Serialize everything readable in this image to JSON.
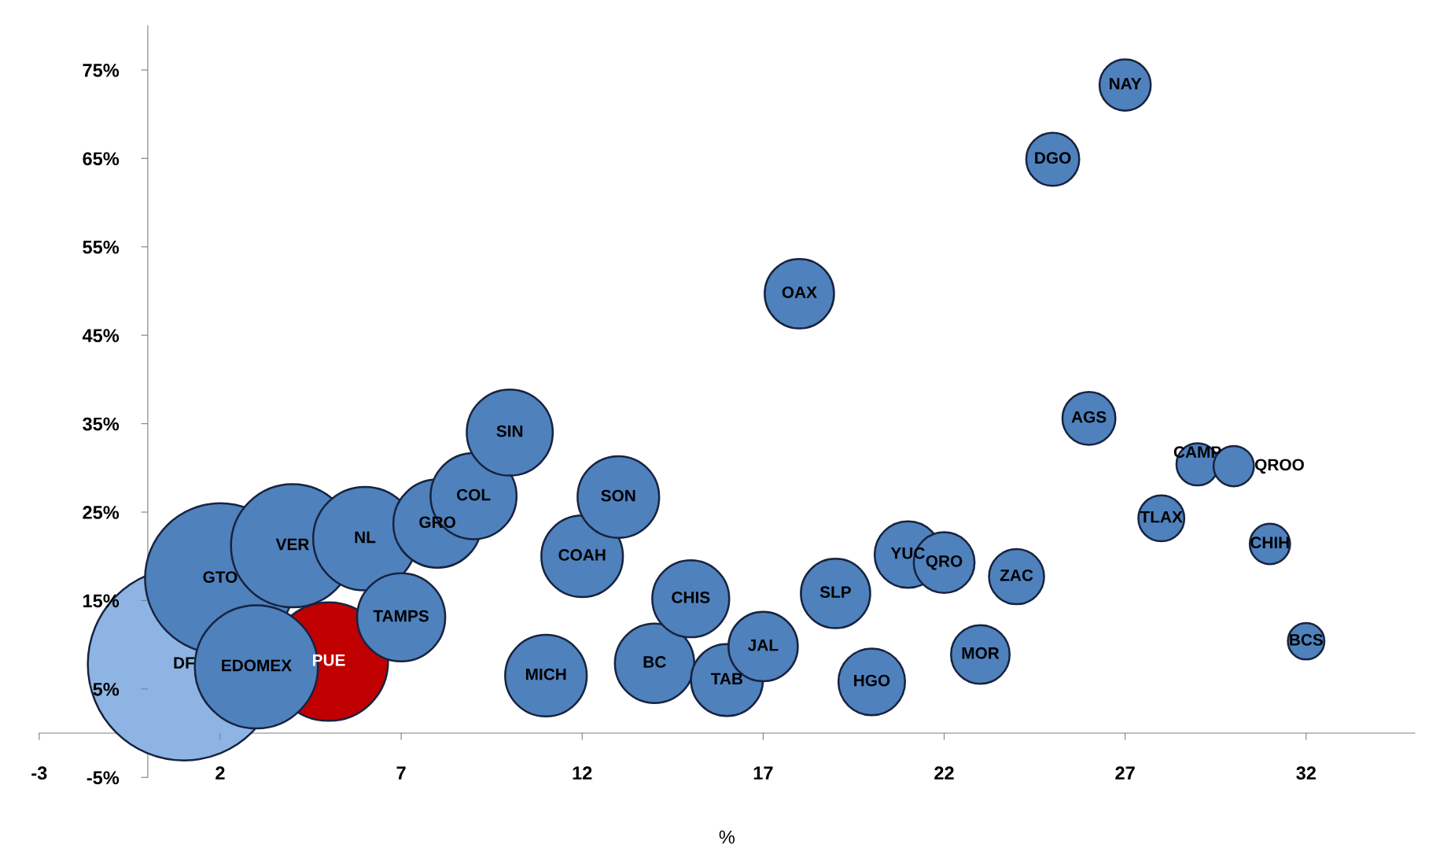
{
  "chart_data": {
    "type": "bubble",
    "xlabel": "%",
    "x": [
      1,
      2,
      4,
      6,
      5,
      3,
      7,
      8,
      9,
      10,
      11,
      12,
      13,
      14,
      15,
      16,
      17,
      18,
      19,
      20,
      21,
      22,
      23,
      24,
      25,
      26,
      27,
      28,
      29,
      30,
      31,
      32
    ],
    "values": [
      7.8,
      17.5,
      21.2,
      22.0,
      8.1,
      7.5,
      13.1,
      23.7,
      26.8,
      34.0,
      6.5,
      20.0,
      26.7,
      7.9,
      15.2,
      6.0,
      9.8,
      49.7,
      15.8,
      5.8,
      20.2,
      19.3,
      8.9,
      17.7,
      64.9,
      35.6,
      73.3,
      24.3,
      30.4,
      30.2,
      21.4,
      10.4
    ],
    "sizes": [
      1,
      0.61,
      0.41,
      0.29,
      0.38,
      0.41,
      0.21,
      0.21,
      0.2,
      0.2,
      0.18,
      0.18,
      0.18,
      0.17,
      0.16,
      0.14,
      0.13,
      0.13,
      0.13,
      0.12,
      0.12,
      0.1,
      0.093,
      0.082,
      0.076,
      0.076,
      0.071,
      0.057,
      0.048,
      0.044,
      0.044,
      0.036
    ],
    "colors": [
      "#8eb4e3",
      "#4f81bd",
      "#4f81bd",
      "#4f81bd",
      "#c00000",
      "#4f81bd",
      "#4f81bd",
      "#4f81bd",
      "#4f81bd",
      "#4f81bd",
      "#4f81bd",
      "#4f81bd",
      "#4f81bd",
      "#4f81bd",
      "#4f81bd",
      "#4f81bd",
      "#4f81bd",
      "#4f81bd",
      "#4f81bd",
      "#4f81bd",
      "#4f81bd",
      "#4f81bd",
      "#4f81bd",
      "#4f81bd",
      "#4f81bd",
      "#4f81bd",
      "#4f81bd",
      "#4f81bd",
      "#4f81bd",
      "#4f81bd",
      "#4f81bd",
      "#4f81bd"
    ],
    "xlim": [
      -3,
      35
    ],
    "ylim": [
      -5,
      80
    ],
    "xticks": [
      -3,
      2,
      7,
      12,
      17,
      22,
      27,
      32
    ],
    "yticks": [
      {
        "value": -5,
        "label": "-5%"
      },
      {
        "value": 5,
        "label": "5%"
      },
      {
        "value": 15,
        "label": "15%"
      },
      {
        "value": 25,
        "label": "25%"
      },
      {
        "value": 35,
        "label": "35%"
      },
      {
        "value": 45,
        "label": "45%"
      },
      {
        "value": 55,
        "label": "55%"
      },
      {
        "value": 65,
        "label": "65%"
      },
      {
        "value": 75,
        "label": "75%"
      }
    ],
    "grid": false,
    "annotations": [
      {
        "text": "DF",
        "x": 1,
        "y": 7.8
      },
      {
        "text": "GTO",
        "x": 2,
        "y": 17.5
      },
      {
        "text": "VER",
        "x": 4,
        "y": 21.2
      },
      {
        "text": "NL",
        "x": 6,
        "y": 22.0
      },
      {
        "text": "PUE",
        "x": 5,
        "y": 8.1
      },
      {
        "text": "EDOMEX",
        "x": 3,
        "y": 7.5
      },
      {
        "text": "TAMPS",
        "x": 7,
        "y": 13.1
      },
      {
        "text": "GRO",
        "x": 8,
        "y": 23.7
      },
      {
        "text": "COL",
        "x": 9,
        "y": 26.8
      },
      {
        "text": "SIN",
        "x": 10,
        "y": 34.0
      },
      {
        "text": "MICH",
        "x": 11,
        "y": 6.5
      },
      {
        "text": "COAH",
        "x": 12,
        "y": 20.0
      },
      {
        "text": "SON",
        "x": 13,
        "y": 26.7
      },
      {
        "text": "BC",
        "x": 14,
        "y": 7.9
      },
      {
        "text": "CHIS",
        "x": 15,
        "y": 15.2
      },
      {
        "text": "TAB",
        "x": 16,
        "y": 6.0
      },
      {
        "text": "JAL",
        "x": 17,
        "y": 9.8
      },
      {
        "text": "OAX",
        "x": 18,
        "y": 49.7
      },
      {
        "text": "SLP",
        "x": 19,
        "y": 15.8
      },
      {
        "text": "HGO",
        "x": 20,
        "y": 5.8
      },
      {
        "text": "YUC",
        "x": 21,
        "y": 20.2
      },
      {
        "text": "QRO",
        "x": 22,
        "y": 19.3
      },
      {
        "text": "MOR",
        "x": 23,
        "y": 8.9
      },
      {
        "text": "ZAC",
        "x": 24,
        "y": 17.7
      },
      {
        "text": "DGO",
        "x": 25,
        "y": 64.9
      },
      {
        "text": "AGS",
        "x": 26,
        "y": 35.6
      },
      {
        "text": "NAY",
        "x": 27,
        "y": 73.3
      },
      {
        "text": "TLAX",
        "x": 28,
        "y": 24.3
      },
      {
        "text": "CAMP",
        "x": 29,
        "y": 30.4
      },
      {
        "text": "QROO",
        "x": 30,
        "y": 30.2
      },
      {
        "text": "CHIH",
        "x": 31,
        "y": 21.4
      },
      {
        "text": "BCS",
        "x": 32,
        "y": 10.4
      }
    ]
  }
}
